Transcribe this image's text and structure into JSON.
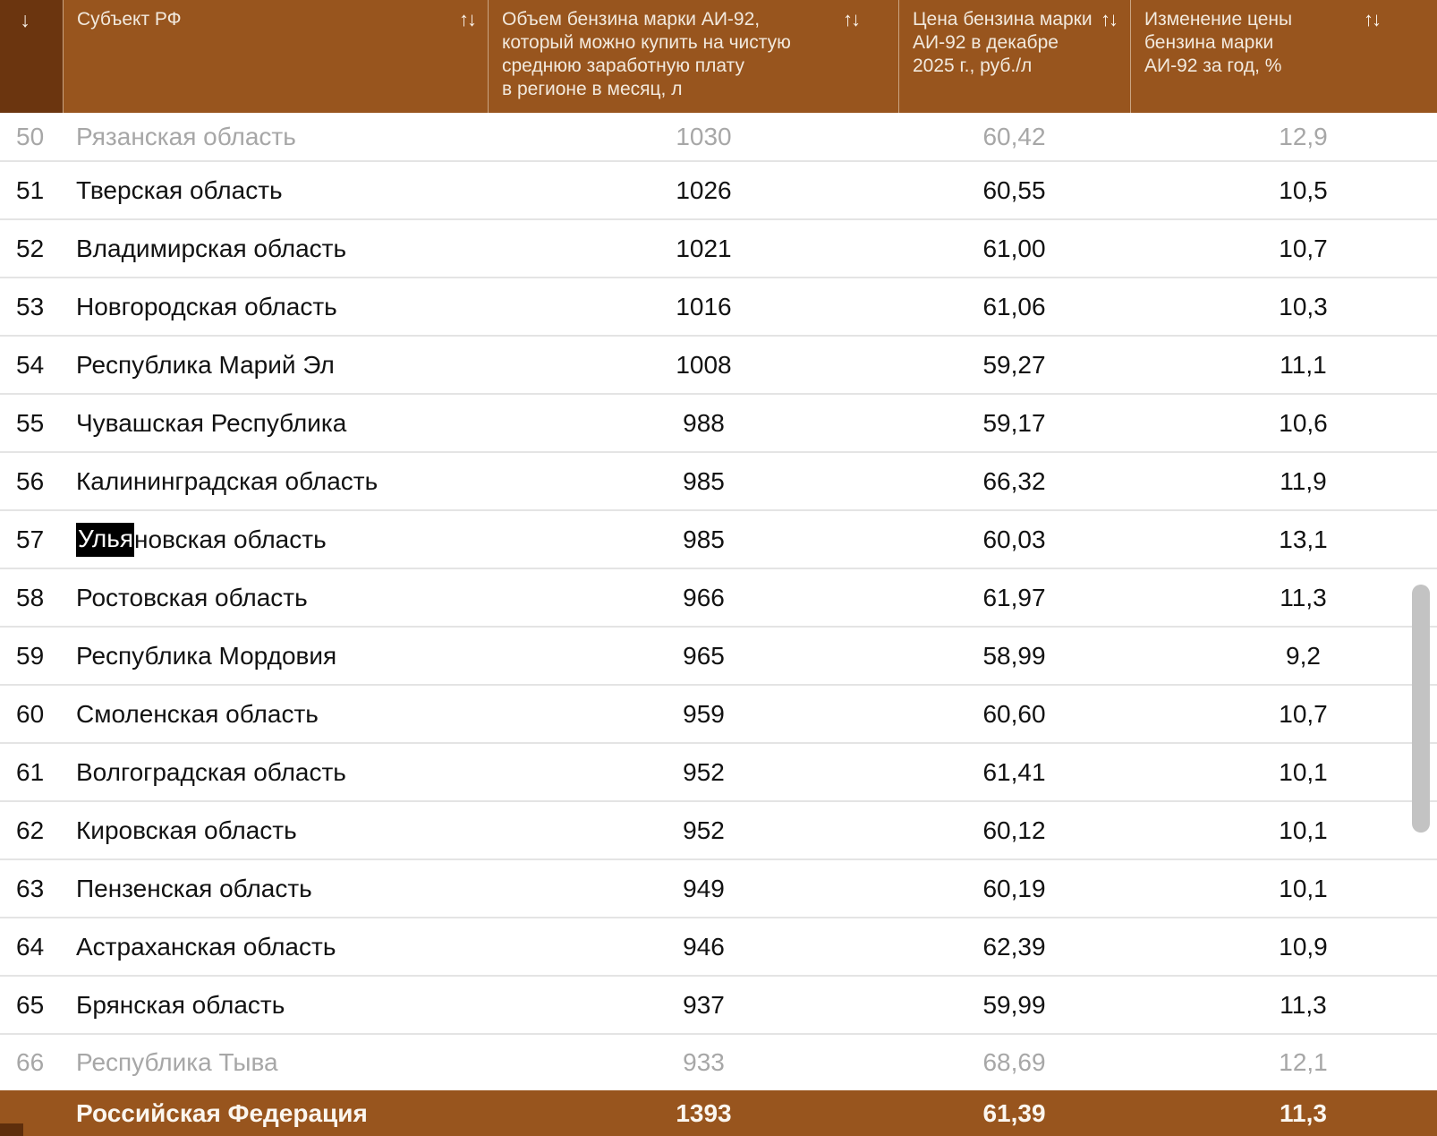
{
  "header": {
    "row_number_sort_icon": "↓",
    "sort_icon": "↑↓",
    "columns": [
      {
        "label": "Субъект РФ"
      },
      {
        "label": "Объем бензина марки АИ-92,\nкоторый можно купить на чистую\nсреднюю заработную плату\nв регионе в месяц, л"
      },
      {
        "label": "Цена бензина марки\nАИ-92 в декабре\n2025 г., руб./л"
      },
      {
        "label": "Изменение цены\nбензина марки\nАИ-92 за год, %"
      }
    ]
  },
  "table": {
    "rows": [
      {
        "num": "50",
        "region": "Рязанская область",
        "volume": "1030",
        "price": "60,42",
        "change": "12,9",
        "faded": true
      },
      {
        "num": "51",
        "region": "Тверская область",
        "volume": "1026",
        "price": "60,55",
        "change": "10,5"
      },
      {
        "num": "52",
        "region": "Владимирская область",
        "volume": "1021",
        "price": "61,00",
        "change": "10,7"
      },
      {
        "num": "53",
        "region": "Новгородская область",
        "volume": "1016",
        "price": "61,06",
        "change": "10,3"
      },
      {
        "num": "54",
        "region": "Республика Марий Эл",
        "volume": "1008",
        "price": "59,27",
        "change": "11,1"
      },
      {
        "num": "55",
        "region": "Чувашская Республика",
        "volume": "988",
        "price": "59,17",
        "change": "10,6"
      },
      {
        "num": "56",
        "region": "Калининградская область",
        "volume": "985",
        "price": "66,32",
        "change": "11,9"
      },
      {
        "num": "57",
        "region": "Ульяновская область",
        "volume": "985",
        "price": "60,03",
        "change": "13,1",
        "highlight": {
          "text": "Улья",
          "rest": "новская область"
        }
      },
      {
        "num": "58",
        "region": "Ростовская область",
        "volume": "966",
        "price": "61,97",
        "change": "11,3"
      },
      {
        "num": "59",
        "region": "Республика Мордовия",
        "volume": "965",
        "price": "58,99",
        "change": "9,2"
      },
      {
        "num": "60",
        "region": "Смоленская область",
        "volume": "959",
        "price": "60,60",
        "change": "10,7"
      },
      {
        "num": "61",
        "region": "Волгоградская область",
        "volume": "952",
        "price": "61,41",
        "change": "10,1"
      },
      {
        "num": "62",
        "region": "Кировская область",
        "volume": "952",
        "price": "60,12",
        "change": "10,1"
      },
      {
        "num": "63",
        "region": "Пензенская область",
        "volume": "949",
        "price": "60,19",
        "change": "10,1"
      },
      {
        "num": "64",
        "region": "Астраханская область",
        "volume": "946",
        "price": "62,39",
        "change": "10,9"
      },
      {
        "num": "65",
        "region": "Брянская область",
        "volume": "937",
        "price": "59,99",
        "change": "11,3"
      },
      {
        "num": "66",
        "region": "Республика Тыва",
        "volume": "933",
        "price": "68,69",
        "change": "12,1",
        "faded": true
      }
    ]
  },
  "footer": {
    "region": "Российская Федерация",
    "volume": "1393",
    "price": "61,39",
    "change": "11,3"
  },
  "colors": {
    "header_bg": "#98551E",
    "header_first_col_bg": "#6B350F",
    "footer_bg": "#98551E",
    "faded_text": "#A7A7A7",
    "row_separator": "#E4E4E4",
    "highlight_bg": "#000000",
    "scrollbar_thumb": "#C3C3C3"
  }
}
